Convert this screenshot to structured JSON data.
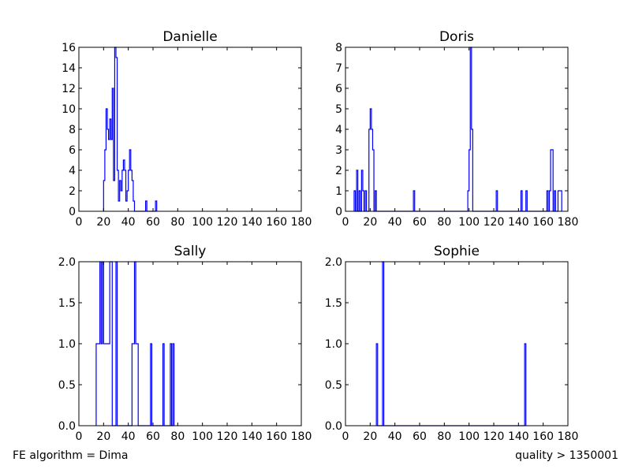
{
  "figure": {
    "footnote_left": "FE algorithm = Dima",
    "footnote_right": "quality > 1350001"
  },
  "chart_data": [
    {
      "type": "histogram",
      "title": "Danielle",
      "xlabel": "",
      "ylabel": "",
      "xlim": [
        0,
        180
      ],
      "ylim": [
        0,
        16
      ],
      "xticks": [
        0,
        20,
        40,
        60,
        80,
        100,
        120,
        140,
        160,
        180
      ],
      "yticks": [
        0,
        2,
        4,
        6,
        8,
        10,
        12,
        14,
        16
      ],
      "grid": false,
      "legend": "none",
      "bin_width": 1,
      "color": "#0000ff",
      "bins": [
        {
          "x": 20,
          "count": 3
        },
        {
          "x": 21,
          "count": 6
        },
        {
          "x": 22,
          "count": 10
        },
        {
          "x": 23,
          "count": 8
        },
        {
          "x": 24,
          "count": 7
        },
        {
          "x": 25,
          "count": 9
        },
        {
          "x": 26,
          "count": 7
        },
        {
          "x": 27,
          "count": 12
        },
        {
          "x": 28,
          "count": 3
        },
        {
          "x": 29,
          "count": 16
        },
        {
          "x": 30,
          "count": 15
        },
        {
          "x": 31,
          "count": 4
        },
        {
          "x": 32,
          "count": 1
        },
        {
          "x": 33,
          "count": 3
        },
        {
          "x": 34,
          "count": 2
        },
        {
          "x": 35,
          "count": 4
        },
        {
          "x": 36,
          "count": 5
        },
        {
          "x": 37,
          "count": 4
        },
        {
          "x": 38,
          "count": 1
        },
        {
          "x": 39,
          "count": 2
        },
        {
          "x": 40,
          "count": 4
        },
        {
          "x": 41,
          "count": 6
        },
        {
          "x": 42,
          "count": 4
        },
        {
          "x": 43,
          "count": 3
        },
        {
          "x": 44,
          "count": 1
        },
        {
          "x": 54,
          "count": 1
        },
        {
          "x": 62,
          "count": 1
        }
      ]
    },
    {
      "type": "histogram",
      "title": "Doris",
      "xlabel": "",
      "ylabel": "",
      "xlim": [
        0,
        180
      ],
      "ylim": [
        0,
        8
      ],
      "xticks": [
        0,
        20,
        40,
        60,
        80,
        100,
        120,
        140,
        160,
        180
      ],
      "yticks": [
        0,
        1,
        2,
        3,
        4,
        5,
        6,
        7,
        8
      ],
      "grid": false,
      "legend": "none",
      "bin_width": 1,
      "color": "#0000ff",
      "bins": [
        {
          "x": 7,
          "count": 1
        },
        {
          "x": 9,
          "count": 2
        },
        {
          "x": 11,
          "count": 1
        },
        {
          "x": 13,
          "count": 2
        },
        {
          "x": 14,
          "count": 1
        },
        {
          "x": 16,
          "count": 1
        },
        {
          "x": 19,
          "count": 4
        },
        {
          "x": 20,
          "count": 5
        },
        {
          "x": 21,
          "count": 4
        },
        {
          "x": 22,
          "count": 3
        },
        {
          "x": 24,
          "count": 1
        },
        {
          "x": 55,
          "count": 1
        },
        {
          "x": 99,
          "count": 1
        },
        {
          "x": 100,
          "count": 3
        },
        {
          "x": 101,
          "count": 8
        },
        {
          "x": 102,
          "count": 4
        },
        {
          "x": 122,
          "count": 1
        },
        {
          "x": 142,
          "count": 1
        },
        {
          "x": 146,
          "count": 1
        },
        {
          "x": 163,
          "count": 1
        },
        {
          "x": 165,
          "count": 1
        },
        {
          "x": 166,
          "count": 3
        },
        {
          "x": 167,
          "count": 3
        },
        {
          "x": 169,
          "count": 1
        },
        {
          "x": 172,
          "count": 1
        },
        {
          "x": 173,
          "count": 1
        },
        {
          "x": 174,
          "count": 1
        }
      ]
    },
    {
      "type": "histogram",
      "title": "Sally",
      "xlabel": "",
      "ylabel": "",
      "xlim": [
        0,
        180
      ],
      "ylim": [
        0,
        2
      ],
      "xticks": [
        0,
        20,
        40,
        60,
        80,
        100,
        120,
        140,
        160,
        180
      ],
      "yticks": [
        0.0,
        0.5,
        1.0,
        1.5,
        2.0
      ],
      "grid": false,
      "legend": "none",
      "bin_width": 1,
      "color": "#0000ff",
      "bins": [
        {
          "x": 14,
          "count": 1
        },
        {
          "x": 15,
          "count": 1
        },
        {
          "x": 16,
          "count": 1
        },
        {
          "x": 17,
          "count": 2
        },
        {
          "x": 18,
          "count": 1
        },
        {
          "x": 19,
          "count": 2
        },
        {
          "x": 20,
          "count": 1
        },
        {
          "x": 21,
          "count": 1
        },
        {
          "x": 22,
          "count": 1
        },
        {
          "x": 23,
          "count": 1
        },
        {
          "x": 24,
          "count": 1
        },
        {
          "x": 25,
          "count": 2
        },
        {
          "x": 26,
          "count": 2
        },
        {
          "x": 30,
          "count": 2
        },
        {
          "x": 43,
          "count": 1
        },
        {
          "x": 44,
          "count": 1
        },
        {
          "x": 45,
          "count": 2
        },
        {
          "x": 46,
          "count": 1
        },
        {
          "x": 47,
          "count": 1
        },
        {
          "x": 58,
          "count": 1
        },
        {
          "x": 68,
          "count": 1
        },
        {
          "x": 74,
          "count": 1
        },
        {
          "x": 76,
          "count": 1
        }
      ]
    },
    {
      "type": "histogram",
      "title": "Sophie",
      "xlabel": "",
      "ylabel": "",
      "xlim": [
        0,
        180
      ],
      "ylim": [
        0,
        2
      ],
      "xticks": [
        0,
        20,
        40,
        60,
        80,
        100,
        120,
        140,
        160,
        180
      ],
      "yticks": [
        0.0,
        0.5,
        1.0,
        1.5,
        2.0
      ],
      "grid": false,
      "legend": "none",
      "bin_width": 1,
      "color": "#0000ff",
      "bins": [
        {
          "x": 25,
          "count": 1
        },
        {
          "x": 30,
          "count": 2
        },
        {
          "x": 145,
          "count": 1
        }
      ]
    }
  ]
}
